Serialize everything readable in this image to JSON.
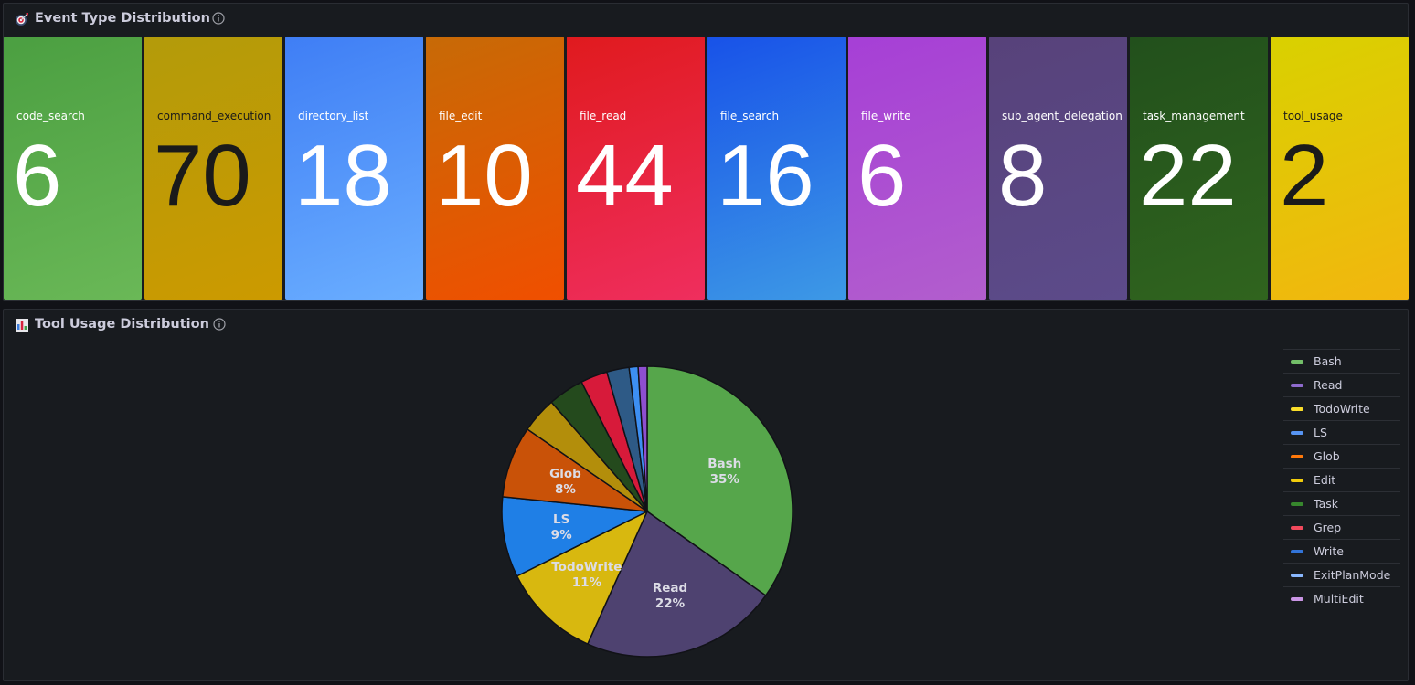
{
  "event_panel": {
    "title": "Event Type Distribution",
    "icon": "target-icon"
  },
  "event_stats": [
    {
      "label": "code_search",
      "value": "6",
      "color_top": "#4b9f41",
      "color_bottom": "#6ab857",
      "text": "#ffffff"
    },
    {
      "label": "command_execution",
      "value": "70",
      "color_top": "#b39b0a",
      "color_bottom": "#cc9a00",
      "text": "#1a1a1a"
    },
    {
      "label": "directory_list",
      "value": "18",
      "color_top": "#3f7ef5",
      "color_bottom": "#6aaeff",
      "text": "#ffffff"
    },
    {
      "label": "file_edit",
      "value": "10",
      "color_top": "#c76a06",
      "color_bottom": "#f04f00",
      "text": "#ffffff"
    },
    {
      "label": "file_read",
      "value": "44",
      "color_top": "#e01a1e",
      "color_bottom": "#ef2e5e",
      "text": "#ffffff"
    },
    {
      "label": "file_search",
      "value": "16",
      "color_top": "#1852e8",
      "color_bottom": "#3d99e6",
      "text": "#ffffff"
    },
    {
      "label": "file_write",
      "value": "6",
      "color_top": "#a63fd6",
      "color_bottom": "#b25ecd",
      "text": "#ffffff"
    },
    {
      "label": "sub_agent_delegation",
      "value": "8",
      "color_top": "#57427a",
      "color_bottom": "#5c4b8a",
      "text": "#ffffff"
    },
    {
      "label": "task_management",
      "value": "22",
      "color_top": "#22501c",
      "color_bottom": "#30641e",
      "text": "#ffffff"
    },
    {
      "label": "tool_usage",
      "value": "2",
      "color_top": "#d9d100",
      "color_bottom": "#f2b60f",
      "text": "#1a1a1a"
    }
  ],
  "tool_panel": {
    "title": "Tool Usage Distribution",
    "icon": "bar-chart-icon"
  },
  "chart_data": {
    "type": "pie",
    "series": [
      {
        "name": "Bash",
        "value": 35,
        "label": "35%",
        "color": "#56a64b",
        "legend_color": "#73bf69"
      },
      {
        "name": "Read",
        "value": 22,
        "label": "22%",
        "color": "#4e4270",
        "legend_color": "#8f6bce"
      },
      {
        "name": "TodoWrite",
        "value": 11,
        "label": "11%",
        "color": "#d8b80f",
        "legend_color": "#fade2a"
      },
      {
        "name": "LS",
        "value": 9,
        "label": "9%",
        "color": "#1f7fe6",
        "legend_color": "#5794f2"
      },
      {
        "name": "Glob",
        "value": 8,
        "label": "8%",
        "color": "#c95208",
        "legend_color": "#ff780a"
      },
      {
        "name": "Edit",
        "value": 4,
        "label": "",
        "color": "#b38e0b",
        "legend_color": "#f2cc0c"
      },
      {
        "name": "Task",
        "value": 4,
        "label": "",
        "color": "#244a1d",
        "legend_color": "#37872d"
      },
      {
        "name": "Grep",
        "value": 3,
        "label": "",
        "color": "#d71a3a",
        "legend_color": "#f2495c"
      },
      {
        "name": "Write",
        "value": 2.5,
        "label": "",
        "color": "#2e5a86",
        "legend_color": "#3274d9"
      },
      {
        "name": "ExitPlanMode",
        "value": 1,
        "label": "",
        "color": "#3d8ff2",
        "legend_color": "#8ab8ff"
      },
      {
        "name": "MultiEdit",
        "value": 1,
        "label": "",
        "color": "#8e4fd0",
        "legend_color": "#ca95e5"
      }
    ],
    "legend": "right",
    "start_angle_deg": 0,
    "direction": "clockwise"
  }
}
